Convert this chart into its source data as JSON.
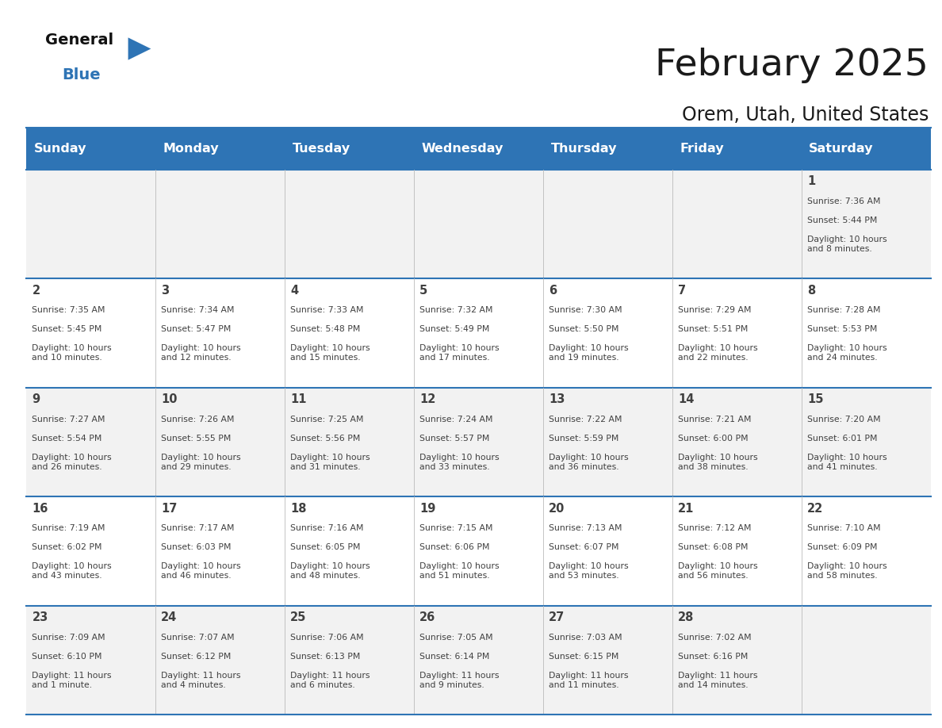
{
  "title": "February 2025",
  "subtitle": "Orem, Utah, United States",
  "header_bg": "#2E74B5",
  "header_text": "#FFFFFF",
  "cell_bg_white": "#FFFFFF",
  "cell_bg_gray": "#F2F2F2",
  "border_color": "#2E74B5",
  "text_color": "#404040",
  "day_number_color": "#2E74B5",
  "day_headers": [
    "Sunday",
    "Monday",
    "Tuesday",
    "Wednesday",
    "Thursday",
    "Friday",
    "Saturday"
  ],
  "weeks": [
    [
      {
        "day": "",
        "sunrise": "",
        "sunset": "",
        "daylight": ""
      },
      {
        "day": "",
        "sunrise": "",
        "sunset": "",
        "daylight": ""
      },
      {
        "day": "",
        "sunrise": "",
        "sunset": "",
        "daylight": ""
      },
      {
        "day": "",
        "sunrise": "",
        "sunset": "",
        "daylight": ""
      },
      {
        "day": "",
        "sunrise": "",
        "sunset": "",
        "daylight": ""
      },
      {
        "day": "",
        "sunrise": "",
        "sunset": "",
        "daylight": ""
      },
      {
        "day": "1",
        "sunrise": "7:36 AM",
        "sunset": "5:44 PM",
        "daylight": "10 hours\nand 8 minutes."
      }
    ],
    [
      {
        "day": "2",
        "sunrise": "7:35 AM",
        "sunset": "5:45 PM",
        "daylight": "10 hours\nand 10 minutes."
      },
      {
        "day": "3",
        "sunrise": "7:34 AM",
        "sunset": "5:47 PM",
        "daylight": "10 hours\nand 12 minutes."
      },
      {
        "day": "4",
        "sunrise": "7:33 AM",
        "sunset": "5:48 PM",
        "daylight": "10 hours\nand 15 minutes."
      },
      {
        "day": "5",
        "sunrise": "7:32 AM",
        "sunset": "5:49 PM",
        "daylight": "10 hours\nand 17 minutes."
      },
      {
        "day": "6",
        "sunrise": "7:30 AM",
        "sunset": "5:50 PM",
        "daylight": "10 hours\nand 19 minutes."
      },
      {
        "day": "7",
        "sunrise": "7:29 AM",
        "sunset": "5:51 PM",
        "daylight": "10 hours\nand 22 minutes."
      },
      {
        "day": "8",
        "sunrise": "7:28 AM",
        "sunset": "5:53 PM",
        "daylight": "10 hours\nand 24 minutes."
      }
    ],
    [
      {
        "day": "9",
        "sunrise": "7:27 AM",
        "sunset": "5:54 PM",
        "daylight": "10 hours\nand 26 minutes."
      },
      {
        "day": "10",
        "sunrise": "7:26 AM",
        "sunset": "5:55 PM",
        "daylight": "10 hours\nand 29 minutes."
      },
      {
        "day": "11",
        "sunrise": "7:25 AM",
        "sunset": "5:56 PM",
        "daylight": "10 hours\nand 31 minutes."
      },
      {
        "day": "12",
        "sunrise": "7:24 AM",
        "sunset": "5:57 PM",
        "daylight": "10 hours\nand 33 minutes."
      },
      {
        "day": "13",
        "sunrise": "7:22 AM",
        "sunset": "5:59 PM",
        "daylight": "10 hours\nand 36 minutes."
      },
      {
        "day": "14",
        "sunrise": "7:21 AM",
        "sunset": "6:00 PM",
        "daylight": "10 hours\nand 38 minutes."
      },
      {
        "day": "15",
        "sunrise": "7:20 AM",
        "sunset": "6:01 PM",
        "daylight": "10 hours\nand 41 minutes."
      }
    ],
    [
      {
        "day": "16",
        "sunrise": "7:19 AM",
        "sunset": "6:02 PM",
        "daylight": "10 hours\nand 43 minutes."
      },
      {
        "day": "17",
        "sunrise": "7:17 AM",
        "sunset": "6:03 PM",
        "daylight": "10 hours\nand 46 minutes."
      },
      {
        "day": "18",
        "sunrise": "7:16 AM",
        "sunset": "6:05 PM",
        "daylight": "10 hours\nand 48 minutes."
      },
      {
        "day": "19",
        "sunrise": "7:15 AM",
        "sunset": "6:06 PM",
        "daylight": "10 hours\nand 51 minutes."
      },
      {
        "day": "20",
        "sunrise": "7:13 AM",
        "sunset": "6:07 PM",
        "daylight": "10 hours\nand 53 minutes."
      },
      {
        "day": "21",
        "sunrise": "7:12 AM",
        "sunset": "6:08 PM",
        "daylight": "10 hours\nand 56 minutes."
      },
      {
        "day": "22",
        "sunrise": "7:10 AM",
        "sunset": "6:09 PM",
        "daylight": "10 hours\nand 58 minutes."
      }
    ],
    [
      {
        "day": "23",
        "sunrise": "7:09 AM",
        "sunset": "6:10 PM",
        "daylight": "11 hours\nand 1 minute."
      },
      {
        "day": "24",
        "sunrise": "7:07 AM",
        "sunset": "6:12 PM",
        "daylight": "11 hours\nand 4 minutes."
      },
      {
        "day": "25",
        "sunrise": "7:06 AM",
        "sunset": "6:13 PM",
        "daylight": "11 hours\nand 6 minutes."
      },
      {
        "day": "26",
        "sunrise": "7:05 AM",
        "sunset": "6:14 PM",
        "daylight": "11 hours\nand 9 minutes."
      },
      {
        "day": "27",
        "sunrise": "7:03 AM",
        "sunset": "6:15 PM",
        "daylight": "11 hours\nand 11 minutes."
      },
      {
        "day": "28",
        "sunrise": "7:02 AM",
        "sunset": "6:16 PM",
        "daylight": "11 hours\nand 14 minutes."
      },
      {
        "day": "",
        "sunrise": "",
        "sunset": "",
        "daylight": ""
      }
    ]
  ]
}
